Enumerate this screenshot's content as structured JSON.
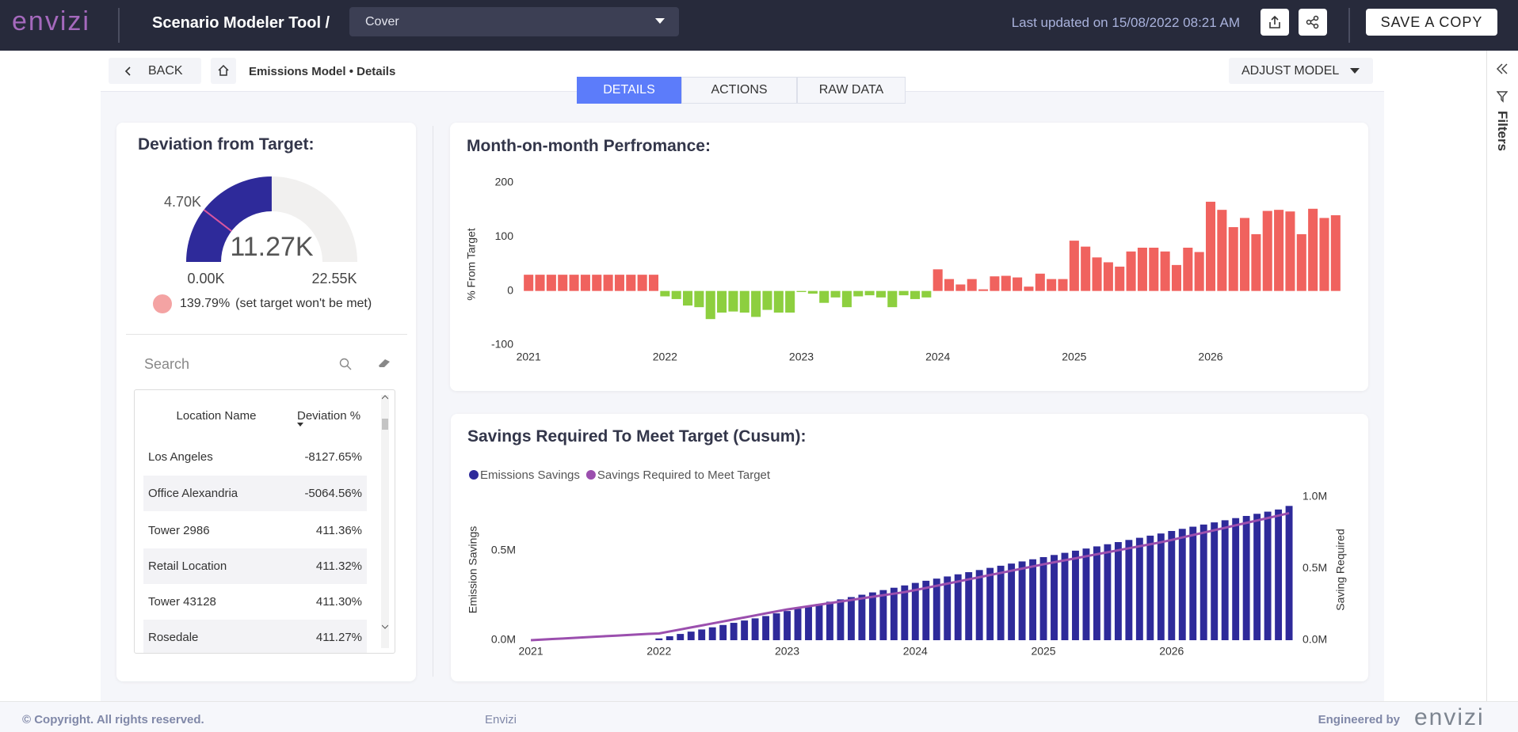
{
  "header": {
    "logo": "envizi",
    "title": "Scenario Modeler Tool /",
    "dropdown": "Cover",
    "last_updated": "Last updated on 15/08/2022 08:21 AM",
    "save_button": "SAVE A COPY"
  },
  "nav": {
    "back": "BACK",
    "breadcrumb": "Emissions Model • Details",
    "tabs": [
      "DETAILS",
      "ACTIONS",
      "RAW DATA"
    ],
    "active_tab": 0,
    "adjust": "ADJUST MODEL"
  },
  "sidebar": {
    "filters": "Filters"
  },
  "deviation": {
    "title": "Deviation from Target:",
    "status_percent": "139.79%",
    "status_text": "(set target won't be met)",
    "status_color": "#f4a3a3",
    "search": "Search"
  },
  "table": {
    "columns": [
      "Location Name",
      "Deviation %"
    ],
    "rows": [
      [
        "Los Angeles",
        "-8127.65%"
      ],
      [
        "Office Alexandria",
        "-5064.56%"
      ],
      [
        "Tower 2986",
        "411.36%"
      ],
      [
        "Retail Location",
        "411.32%"
      ],
      [
        "Tower 43128",
        "411.30%"
      ],
      [
        "Rosedale",
        "411.27%"
      ]
    ]
  },
  "footer": {
    "copyright": "© Copyright. All rights reserved.",
    "brand": "Envizi",
    "engineered": "Engineered by",
    "logo": "envizi"
  },
  "chart_data": [
    {
      "type": "gauge",
      "value": {
        "value": 11270,
        "label": "11.27K"
      },
      "target": {
        "value": 4700,
        "label": "4.70K"
      },
      "min": {
        "value": 0,
        "label": "0.00K"
      },
      "max": {
        "value": 22550,
        "label": "22.55K"
      },
      "color": "#2e2a9a",
      "track_color": "#f1f0ef",
      "target_color": "#d9559f"
    },
    {
      "type": "bar",
      "title": "Month-on-month Perfromance:",
      "y_label": "% From Target",
      "categories": [
        "2021",
        null,
        null,
        null,
        null,
        null,
        null,
        null,
        null,
        null,
        null,
        null,
        "2022",
        null,
        null,
        null,
        null,
        null,
        null,
        null,
        null,
        null,
        null,
        null,
        "2023",
        null,
        null,
        null,
        null,
        null,
        null,
        null,
        null,
        null,
        null,
        null,
        "2024",
        null,
        null,
        null,
        null,
        null,
        null,
        null,
        null,
        null,
        null,
        null,
        "2025",
        null,
        null,
        null,
        null,
        null,
        null,
        null,
        null,
        null,
        null,
        null,
        "2026",
        null,
        null,
        null,
        null,
        null,
        null,
        null,
        null,
        null,
        null,
        null
      ],
      "values": [
        30,
        30,
        30,
        30,
        30,
        30,
        30,
        30,
        30,
        30,
        30,
        30,
        -10,
        -15,
        -27,
        -30,
        -52,
        -40,
        -38,
        -40,
        -48,
        -35,
        -40,
        -40,
        -2,
        -5,
        -22,
        -12,
        -30,
        -10,
        -8,
        -12,
        -30,
        -8,
        -15,
        -12,
        40,
        22,
        12,
        22,
        3,
        27,
        28,
        25,
        8,
        32,
        22,
        22,
        93,
        82,
        62,
        53,
        45,
        73,
        80,
        80,
        73,
        48,
        80,
        72,
        165,
        150,
        118,
        135,
        105,
        148,
        150,
        147,
        105,
        152,
        135,
        140
      ],
      "positive_color": "#f0625e",
      "negative_color": "#8dcf3f",
      "ylim": [
        -100,
        200
      ],
      "yticks": [
        -100,
        0,
        100,
        200
      ],
      "grid": false
    },
    {
      "type": "combo",
      "title": "Savings Required To Meet Target (Cusum):",
      "y_label": "Emission Savings",
      "y2_label": "Saving Required",
      "categories": [
        "2021",
        null,
        null,
        null,
        null,
        null,
        null,
        null,
        null,
        null,
        null,
        null,
        "2022",
        null,
        null,
        null,
        null,
        null,
        null,
        null,
        null,
        null,
        null,
        null,
        "2023",
        null,
        null,
        null,
        null,
        null,
        null,
        null,
        null,
        null,
        null,
        null,
        "2024",
        null,
        null,
        null,
        null,
        null,
        null,
        null,
        null,
        null,
        null,
        null,
        "2025",
        null,
        null,
        null,
        null,
        null,
        null,
        null,
        null,
        null,
        null,
        null,
        "2026",
        null,
        null,
        null,
        null,
        null,
        null,
        null,
        null,
        null,
        null,
        null
      ],
      "series": [
        {
          "name": "Emissions Savings",
          "type": "bar",
          "color": "#2e2a9a",
          "values": [
            null,
            null,
            null,
            null,
            null,
            null,
            null,
            null,
            null,
            null,
            null,
            null,
            10000,
            22000,
            35000,
            48000,
            60000,
            72000,
            85000,
            97000,
            110000,
            122000,
            135000,
            150000,
            163000,
            176000,
            189000,
            202000,
            215000,
            228000,
            241000,
            254000,
            267000,
            280000,
            293000,
            306000,
            320000,
            332000,
            344000,
            356000,
            368000,
            380000,
            392000,
            404000,
            416000,
            428000,
            440000,
            452000,
            464000,
            476000,
            488000,
            500000,
            512000,
            524000,
            536000,
            548000,
            560000,
            572000,
            584000,
            596000,
            610000,
            622000,
            634000,
            646000,
            658000,
            670000,
            682000,
            694000,
            706000,
            718000,
            730000,
            750000
          ]
        },
        {
          "name": "Savings Required to Meet Target",
          "type": "line",
          "color": "#9b4fae",
          "axis": "y2",
          "values": [
            0,
            4000,
            8000,
            12000,
            16000,
            20000,
            24000,
            28000,
            32000,
            36000,
            40000,
            44000,
            47000,
            61000,
            75000,
            89000,
            103000,
            117000,
            131000,
            145000,
            159000,
            173000,
            187000,
            201000,
            215000,
            226000,
            237000,
            248000,
            259000,
            270000,
            281000,
            292000,
            303000,
            314000,
            325000,
            336000,
            350000,
            365000,
            380000,
            395000,
            410000,
            425000,
            440000,
            455000,
            470000,
            485000,
            500000,
            515000,
            530000,
            544000,
            558000,
            572000,
            586000,
            600000,
            614000,
            628000,
            642000,
            656000,
            670000,
            684000,
            700000,
            717000,
            734000,
            751000,
            768000,
            785000,
            802000,
            819000,
            836000,
            853000,
            870000,
            887000
          ]
        }
      ],
      "ylim": [
        0,
        800000
      ],
      "yticks": [
        {
          "value": 0,
          "label": "0.0M"
        },
        {
          "value": 500000,
          "label": "0.5M"
        }
      ],
      "y2lim": [
        0,
        1000000
      ],
      "y2ticks": [
        {
          "value": 0,
          "label": "0.0M"
        },
        {
          "value": 500000,
          "label": "0.5M"
        },
        {
          "value": 1000000,
          "label": "1.0M"
        }
      ],
      "legend": "top-left",
      "grid": false
    }
  ]
}
